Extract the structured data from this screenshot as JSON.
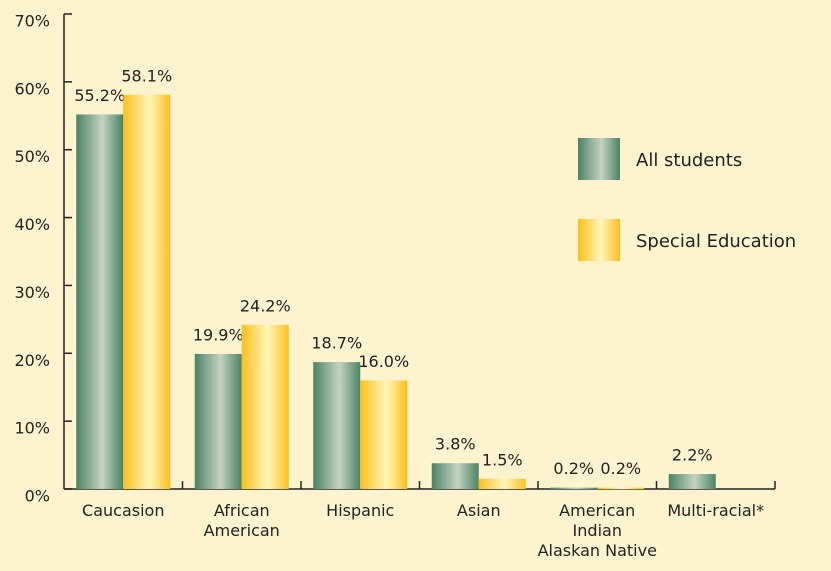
{
  "chart_data": {
    "type": "bar",
    "categories": [
      "Caucasion",
      "African\nAmerican",
      "Hispanic",
      "Asian",
      "American\nIndian\nAlaskan Native",
      "Multi-racial*"
    ],
    "series": [
      {
        "name": "All students",
        "color": "#4a8465",
        "values": [
          55.2,
          19.9,
          18.7,
          3.8,
          0.2,
          2.2
        ],
        "value_labels": [
          "55.2%",
          "19.9%",
          "18.7%",
          "3.8%",
          "0.2%",
          "2.2%"
        ]
      },
      {
        "name": "Special Education",
        "color": "#fdbf1a",
        "values": [
          58.1,
          24.2,
          16.0,
          1.5,
          0.2,
          null
        ],
        "value_labels": [
          "58.1%",
          "24.2%",
          "16.0%",
          "1.5%",
          "0.2%",
          null
        ]
      }
    ],
    "ylim": [
      0,
      70
    ],
    "yticks": [
      {
        "value": 0,
        "label": "0%"
      },
      {
        "value": 10,
        "label": "10%"
      },
      {
        "value": 20,
        "label": "20%"
      },
      {
        "value": 30,
        "label": "30%"
      },
      {
        "value": 40,
        "label": "40%"
      },
      {
        "value": 50,
        "label": "50%"
      },
      {
        "value": 60,
        "label": "60%"
      },
      {
        "value": 70,
        "label": "70%"
      }
    ],
    "legend": "right"
  }
}
